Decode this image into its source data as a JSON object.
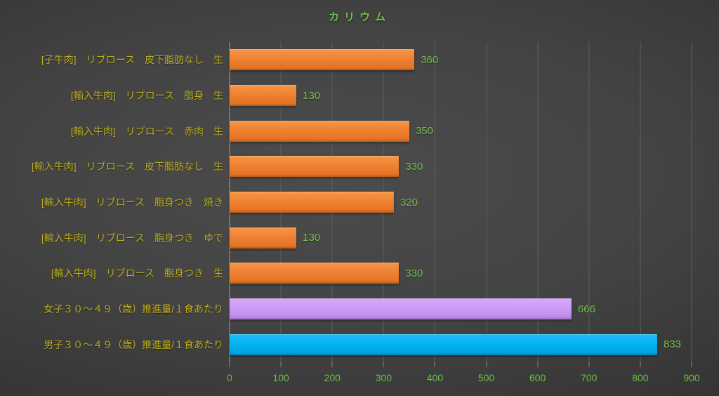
{
  "title": "カリウム",
  "colors": {
    "title_green": "#77BD4D",
    "category_yellow": "#BDAF1E",
    "value_green": "#7CBE53",
    "tick_green": "#6FBC49",
    "gridline_gray": "#5e5e5e",
    "axis_gray": "#9a9a9a",
    "bar_orange": "#ED7D31",
    "bar_purple": "#CA98F3",
    "bar_blue": "#00B0F0",
    "background_center": "#4c4c4c",
    "background_edge": "#262626"
  },
  "chart_data": {
    "type": "bar",
    "orientation": "horizontal",
    "title": "カリウム",
    "categories": [
      "[子牛肉]　リブロース　皮下脂肪なし　生",
      "[輸入牛肉]　リブロース　脂身　生",
      "[輸入牛肉]　リブロース　赤肉　生",
      "[輸入牛肉]　リブロース　皮下脂肪なし　生",
      "[輸入牛肉]　リブロース　脂身つき　焼き",
      "[輸入牛肉]　リブロース　脂身つき　ゆで",
      "[輸入牛肉]　リブロース　脂身つき　生",
      "女子３０～４９（歳）推進量/１食あたり",
      "男子３０～４９（歳）推進量/１食あたり"
    ],
    "values": [
      360,
      130,
      350,
      330,
      320,
      130,
      330,
      666,
      833
    ],
    "value_labels": [
      "360",
      "130",
      "350",
      "330",
      "320",
      "130",
      "330",
      "666",
      "833"
    ],
    "bar_colors": [
      "orange",
      "orange",
      "orange",
      "orange",
      "orange",
      "orange",
      "orange",
      "purple",
      "blue"
    ],
    "xlabel": "",
    "ylabel": "",
    "xlim": [
      0,
      900
    ],
    "xticks": [
      0,
      100,
      200,
      300,
      400,
      500,
      600,
      700,
      800,
      900
    ],
    "grid": true,
    "legend": false
  }
}
